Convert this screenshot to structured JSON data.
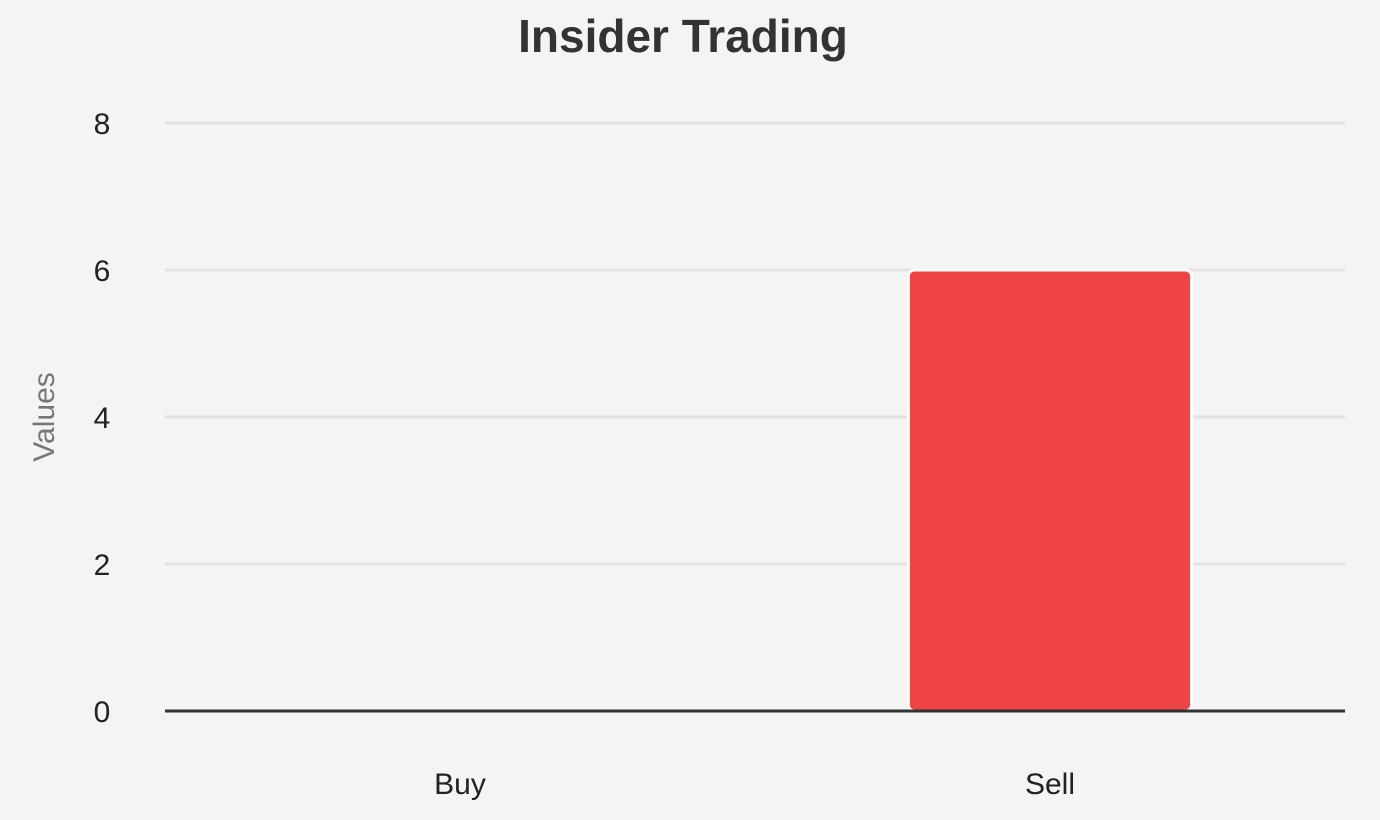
{
  "chart_data": {
    "type": "bar",
    "title": "Insider Trading",
    "ylabel": "Values",
    "categories": [
      "Buy",
      "Sell"
    ],
    "values": [
      0,
      6
    ],
    "color": "#ef4444",
    "ylim": [
      0,
      8
    ],
    "yticks": [
      0,
      2,
      4,
      6,
      8
    ],
    "grid": true
  }
}
